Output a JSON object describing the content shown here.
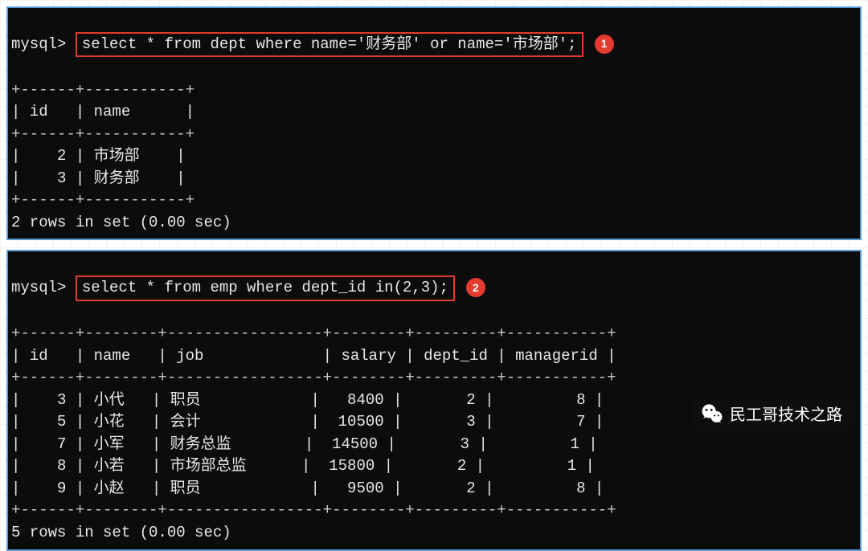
{
  "panel1": {
    "prompt": "mysql>",
    "query": "select * from dept where name='财务部' or name='市场部';",
    "badge": "1",
    "sep_top": "+------+-----------+",
    "header": "| id   | name      |",
    "sep_mid": "+------+-----------+",
    "rows": [
      "|    2 | 市场部    |",
      "|    3 | 财务部    |"
    ],
    "sep_bot": "+------+-----------+",
    "result": "2 rows in set (0.00 sec)"
  },
  "panel2": {
    "prompt": "mysql>",
    "query": "select * from emp where dept_id in(2,3);",
    "badge": "2",
    "sep_top": "+------+--------+-----------------+--------+---------+-----------+",
    "header": "| id   | name   | job             | salary | dept_id | managerid |",
    "sep_mid": "+------+--------+-----------------+--------+---------+-----------+",
    "rows": [
      "|    3 | 小代   | 职员            |   8400 |       2 |         8 |",
      "|    5 | 小花   | 会计            |  10500 |       3 |         7 |",
      "|    7 | 小军   | 财务总监        |  14500 |       3 |         1 |",
      "|    8 | 小若   | 市场部总监      |  15800 |       2 |         1 |",
      "|    9 | 小赵   | 职员            |   9500 |       2 |         8 |"
    ],
    "sep_bot": "+------+--------+-----------------+--------+---------+-----------+",
    "result": "5 rows in set (0.00 sec)"
  },
  "watermark": {
    "text": "民工哥技术之路",
    "icon_name": "wechat-icon"
  },
  "colors": {
    "terminal_bg": "#0c0c0c",
    "terminal_border": "#5b9bd5",
    "highlight_border": "#e33b2e",
    "badge_bg": "#e33b2e",
    "text": "#e8e8e8"
  }
}
